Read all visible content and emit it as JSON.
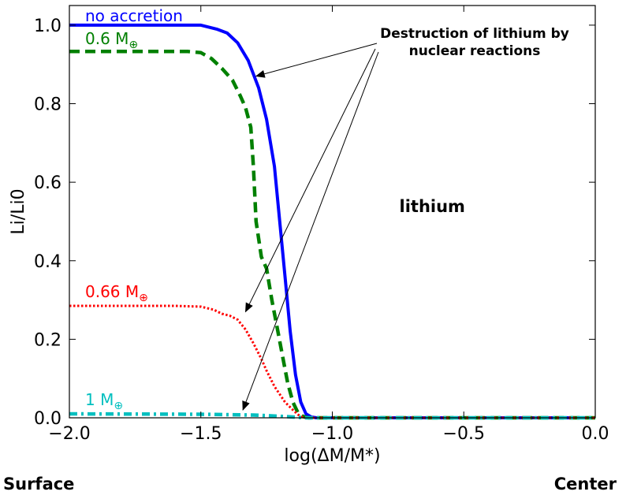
{
  "chart_data": {
    "type": "line",
    "xlabel": "log(ΔM/M*)",
    "ylabel": "Li/Li0",
    "xlim": [
      -2.0,
      0.0
    ],
    "ylim": [
      0.0,
      1.05
    ],
    "x_ticks": [
      "−2.0",
      "−1.5",
      "−1.0",
      "−0.5",
      "0.0"
    ],
    "x_tick_values": [
      -2.0,
      -1.5,
      -1.0,
      -0.5,
      0.0
    ],
    "y_ticks": [
      "0.0",
      "0.2",
      "0.4",
      "0.6",
      "0.8",
      "1.0"
    ],
    "y_tick_values": [
      0.0,
      0.2,
      0.4,
      0.6,
      0.8,
      1.0
    ],
    "grid": false,
    "series": [
      {
        "name": "no accretion",
        "label_text": "no accretion",
        "color": "#0000ff",
        "style": "solid",
        "x": [
          -2.0,
          -1.5,
          -1.44,
          -1.4,
          -1.36,
          -1.32,
          -1.28,
          -1.25,
          -1.22,
          -1.2,
          -1.18,
          -1.16,
          -1.14,
          -1.12,
          -1.1,
          -1.08,
          -1.06,
          0.0
        ],
        "y": [
          1.0,
          1.0,
          0.99,
          0.98,
          0.955,
          0.91,
          0.84,
          0.76,
          0.64,
          0.5,
          0.36,
          0.22,
          0.11,
          0.04,
          0.01,
          0.002,
          0.0,
          0.0
        ]
      },
      {
        "name": "0.6 M⊕",
        "label_text": "0.6 M",
        "label_sub": "⊕",
        "color": "#008000",
        "style": "dashed",
        "x": [
          -2.0,
          -1.55,
          -1.5,
          -1.46,
          -1.42,
          -1.38,
          -1.35,
          -1.33,
          -1.31,
          -1.3,
          -1.29,
          -1.27,
          -1.25,
          -1.23,
          -1.21,
          -1.19,
          -1.17,
          -1.15,
          -1.13,
          -1.11,
          -1.09,
          0.0
        ],
        "y": [
          0.933,
          0.933,
          0.93,
          0.915,
          0.89,
          0.86,
          0.82,
          0.79,
          0.74,
          0.64,
          0.5,
          0.41,
          0.38,
          0.3,
          0.23,
          0.16,
          0.09,
          0.04,
          0.012,
          0.003,
          0.0,
          0.0
        ]
      },
      {
        "name": "0.66 M⊕",
        "label_text": "0.66 M",
        "label_sub": "⊕",
        "color": "#ff0000",
        "style": "dotted",
        "x": [
          -2.0,
          -1.6,
          -1.5,
          -1.45,
          -1.42,
          -1.39,
          -1.36,
          -1.33,
          -1.3,
          -1.27,
          -1.25,
          -1.22,
          -1.18,
          -1.15,
          -1.13,
          -1.11,
          0.0
        ],
        "y": [
          0.285,
          0.285,
          0.283,
          0.275,
          0.265,
          0.26,
          0.25,
          0.225,
          0.19,
          0.15,
          0.12,
          0.08,
          0.04,
          0.02,
          0.008,
          0.0,
          0.0
        ],
        "jagged_x": -1.39,
        "jagged_y": 0.26
      },
      {
        "name": "1 M⊕",
        "label_text": "1 M",
        "label_sub": "⊕",
        "color": "#00bfbf",
        "style": "dashdot",
        "x": [
          -2.0,
          -1.5,
          -1.3,
          -1.2,
          -1.15,
          -1.1,
          0.0
        ],
        "y": [
          0.01,
          0.009,
          0.007,
          0.004,
          0.002,
          0.0,
          0.0
        ]
      }
    ],
    "annotations": [
      {
        "text": [
          "Destruction of lithium by",
          "nuclear reactions"
        ],
        "anchor_x": -0.9,
        "anchor_y": 0.97,
        "arrows_to": [
          {
            "x": -1.29,
            "y": 0.87
          },
          {
            "x": -1.33,
            "y": 0.27
          },
          {
            "x": -1.34,
            "y": 0.02
          }
        ]
      },
      {
        "text": "lithium",
        "x": -0.62,
        "y": 0.5
      }
    ],
    "footer_left": "Surface",
    "footer_right": "Center"
  }
}
